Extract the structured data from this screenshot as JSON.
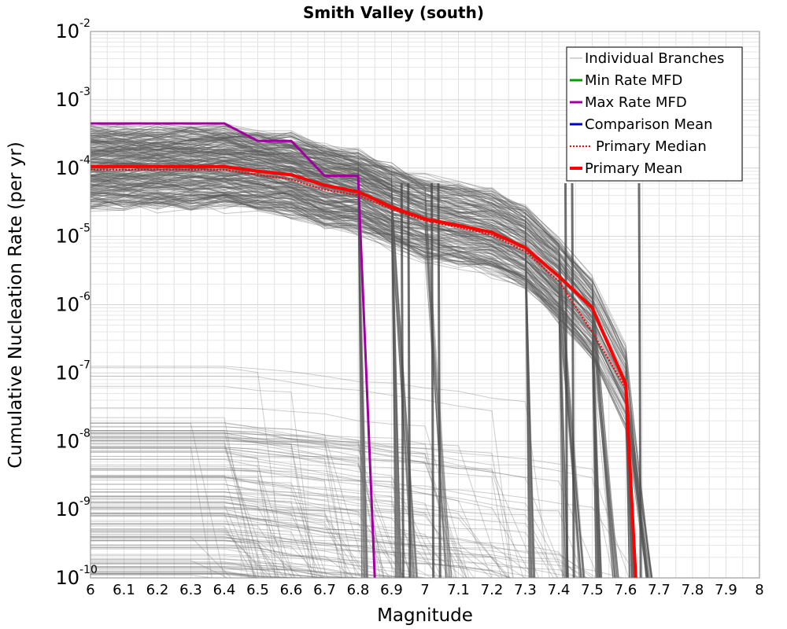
{
  "chart_data": {
    "type": "line",
    "title": "Smith Valley (south)",
    "xlabel": "Magnitude",
    "ylabel": "Cumulative Nucleation Rate (per yr)",
    "xlim": [
      6,
      8
    ],
    "ylim": [
      1e-10,
      0.01
    ],
    "yscale": "log",
    "grid": true,
    "legend_position": "top-right",
    "x_ticks": [
      6,
      6.1,
      6.2,
      6.3,
      6.4,
      6.5,
      6.6,
      6.7,
      6.8,
      6.9,
      7,
      7.1,
      7.2,
      7.3,
      7.4,
      7.5,
      7.6,
      7.7,
      7.8,
      7.9,
      8
    ],
    "x_tick_labels": [
      "6",
      "6.1",
      "6.2",
      "6.3",
      "6.4",
      "6.5",
      "6.6",
      "6.7",
      "6.8",
      "6.9",
      "7",
      "7.1",
      "7.2",
      "7.3",
      "7.4",
      "7.5",
      "7.6",
      "7.7",
      "7.8",
      "7.9",
      "8"
    ],
    "y_ticks": [
      {
        "exp": -2,
        "value": 0.01,
        "label": "10",
        "sup": "-2"
      },
      {
        "exp": -3,
        "value": 0.001,
        "label": "10",
        "sup": "-3"
      },
      {
        "exp": -4,
        "value": 0.0001,
        "label": "10",
        "sup": "-4"
      },
      {
        "exp": -5,
        "value": 1e-05,
        "label": "10",
        "sup": "-5"
      },
      {
        "exp": -6,
        "value": 1e-06,
        "label": "10",
        "sup": "-6"
      },
      {
        "exp": -7,
        "value": 1e-07,
        "label": "10",
        "sup": "-7"
      },
      {
        "exp": -8,
        "value": 1e-08,
        "label": "10",
        "sup": "-8"
      },
      {
        "exp": -9,
        "value": 1e-09,
        "label": "10",
        "sup": "-9"
      },
      {
        "exp": -10,
        "value": 1e-10,
        "label": "10",
        "sup": "-10"
      }
    ],
    "legend": [
      {
        "name": "Individual Branches",
        "color": "#a9a9a9",
        "style": "thin"
      },
      {
        "name": "Min Rate MFD",
        "color": "#00a000",
        "style": "solid"
      },
      {
        "name": "Max Rate MFD",
        "color": "#a000a0",
        "style": "solid"
      },
      {
        "name": "Comparison Mean",
        "color": "#0000c8",
        "style": "solid"
      },
      {
        "name": "Primary Median",
        "color": "#ff0000",
        "style": "dotted"
      },
      {
        "name": "Primary Mean",
        "color": "#ff0000",
        "style": "thick"
      }
    ],
    "series": [
      {
        "name": "Max Rate MFD",
        "color": "#a000a0",
        "x": [
          6.0,
          6.4,
          6.5,
          6.6,
          6.7,
          6.8,
          6.85
        ],
        "y": [
          0.00045,
          0.00045,
          0.00025,
          0.00025,
          7.7e-05,
          7.7e-05,
          1e-10
        ]
      },
      {
        "name": "Primary Median",
        "color": "#ff0000",
        "x": [
          6.0,
          6.1,
          6.2,
          6.3,
          6.4,
          6.5,
          6.6,
          6.7,
          6.8,
          6.9,
          7.0,
          7.1,
          7.2,
          7.3,
          7.4,
          7.5,
          7.6,
          7.63
        ],
        "y": [
          9.5e-05,
          9.5e-05,
          9.5e-05,
          9.5e-05,
          9.5e-05,
          8e-05,
          6.8e-05,
          4.8e-05,
          4e-05,
          2.5e-05,
          1.7e-05,
          1.35e-05,
          1.05e-05,
          6e-06,
          2.2e-06,
          4e-07,
          6e-08,
          1e-10
        ]
      },
      {
        "name": "Primary Mean",
        "color": "#ff0000",
        "x": [
          6.0,
          6.1,
          6.2,
          6.3,
          6.4,
          6.5,
          6.6,
          6.7,
          6.8,
          6.9,
          7.0,
          7.1,
          7.2,
          7.3,
          7.4,
          7.5,
          7.6,
          7.63
        ],
        "y": [
          0.000105,
          0.000105,
          0.000105,
          0.000105,
          0.000105,
          9e-05,
          8e-05,
          5.6e-05,
          4.5e-05,
          2.7e-05,
          1.8e-05,
          1.45e-05,
          1.15e-05,
          6.8e-06,
          2.6e-06,
          9e-07,
          7e-08,
          1e-10
        ]
      }
    ]
  }
}
